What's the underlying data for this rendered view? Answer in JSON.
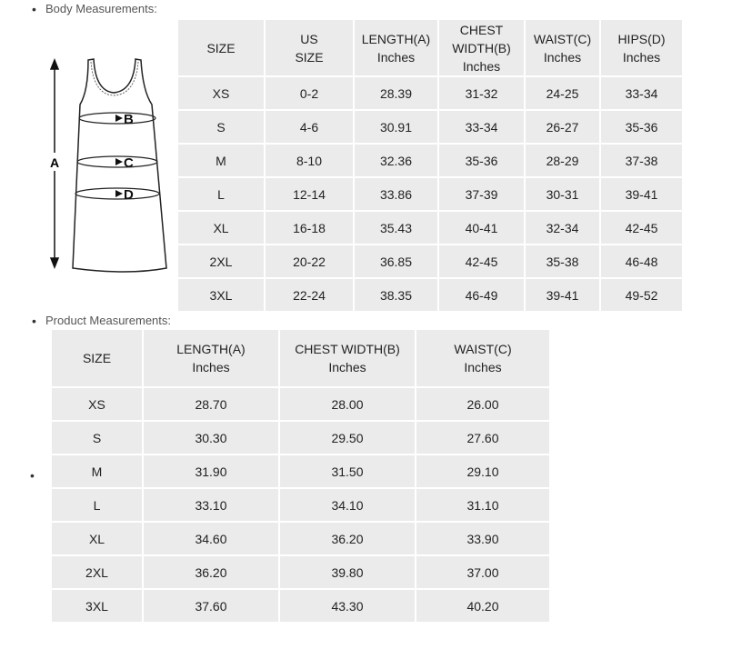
{
  "body_section": {
    "label": "Body Measurements:",
    "headers": [
      [
        "SIZE"
      ],
      [
        "US",
        "SIZE"
      ],
      [
        "LENGTH(A)",
        "Inches"
      ],
      [
        "CHEST",
        "WIDTH(B)",
        "Inches"
      ],
      [
        "WAIST(C)",
        "Inches"
      ],
      [
        "HIPS(D)",
        "Inches"
      ]
    ],
    "rows": [
      [
        "XS",
        "0-2",
        "28.39",
        "31-32",
        "24-25",
        "33-34"
      ],
      [
        "S",
        "4-6",
        "30.91",
        "33-34",
        "26-27",
        "35-36"
      ],
      [
        "M",
        "8-10",
        "32.36",
        "35-36",
        "28-29",
        "37-38"
      ],
      [
        "L",
        "12-14",
        "33.86",
        "37-39",
        "30-31",
        "39-41"
      ],
      [
        "XL",
        "16-18",
        "35.43",
        "40-41",
        "32-34",
        "42-45"
      ],
      [
        "2XL",
        "20-22",
        "36.85",
        "42-45",
        "35-38",
        "46-48"
      ],
      [
        "3XL",
        "22-24",
        "38.35",
        "46-49",
        "39-41",
        "49-52"
      ]
    ]
  },
  "diagram": {
    "labels": {
      "a": "A",
      "b": "B",
      "c": "C",
      "d": "D"
    }
  },
  "product_section": {
    "label": "Product Measurements:",
    "headers": [
      [
        "SIZE"
      ],
      [
        "LENGTH(A)",
        "Inches"
      ],
      [
        "CHEST WIDTH(B)",
        "Inches"
      ],
      [
        "WAIST(C)",
        "Inches"
      ]
    ],
    "rows": [
      [
        "XS",
        "28.70",
        "28.00",
        "26.00"
      ],
      [
        "S",
        "30.30",
        "29.50",
        "27.60"
      ],
      [
        "M",
        "31.90",
        "31.50",
        "29.10"
      ],
      [
        "L",
        "33.10",
        "34.10",
        "31.10"
      ],
      [
        "XL",
        "34.60",
        "36.20",
        "33.90"
      ],
      [
        "2XL",
        "36.20",
        "39.80",
        "37.00"
      ],
      [
        "3XL",
        "37.60",
        "43.30",
        "40.20"
      ]
    ]
  },
  "colors": {
    "cell_bg": "#ebebeb",
    "text": "#222222"
  }
}
